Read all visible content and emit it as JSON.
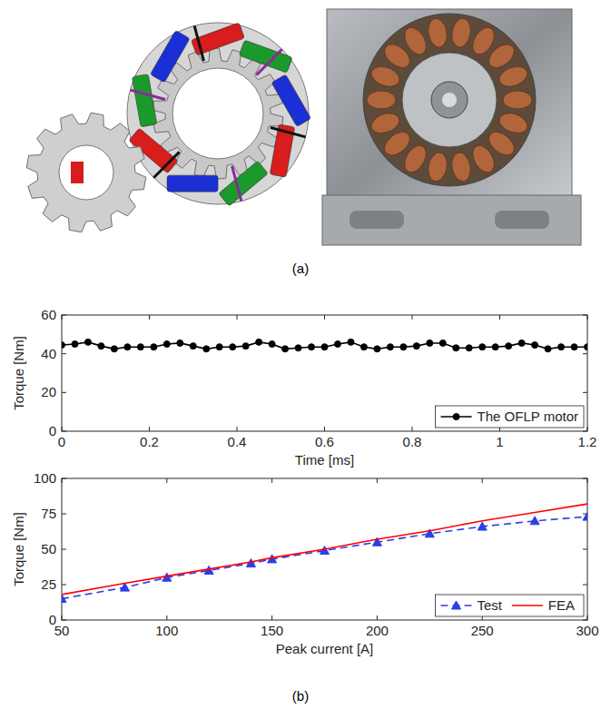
{
  "panel_labels": {
    "a": "(a)",
    "b": "(b)"
  },
  "chart_data": [
    {
      "type": "line",
      "x_label": "Time [ms]",
      "y_label": "Torque [Nm]",
      "x": [
        0,
        0.03,
        0.06,
        0.09,
        0.12,
        0.15,
        0.18,
        0.21,
        0.24,
        0.27,
        0.3,
        0.33,
        0.36,
        0.39,
        0.42,
        0.45,
        0.48,
        0.51,
        0.54,
        0.57,
        0.6,
        0.63,
        0.66,
        0.69,
        0.72,
        0.75,
        0.78,
        0.81,
        0.84,
        0.87,
        0.9,
        0.93,
        0.96,
        0.99,
        1.02,
        1.05,
        1.08,
        1.11,
        1.14,
        1.17,
        1.2
      ],
      "series": [
        {
          "name": "The OFLP motor",
          "color": "#000000",
          "marker": "circle",
          "line_style": "solid",
          "values": [
            44.5,
            45,
            46,
            44,
            42.5,
            43.5,
            43.5,
            43.5,
            45,
            45.5,
            44,
            42.5,
            43.5,
            43.5,
            44,
            46,
            45,
            42.5,
            43,
            43.5,
            43.5,
            45,
            46,
            43.5,
            42.5,
            43.5,
            43.5,
            44,
            45.5,
            45.5,
            43,
            43,
            43.5,
            43.5,
            44,
            45.5,
            44.5,
            42.5,
            43.5,
            43.5,
            43.5
          ]
        }
      ],
      "xlim": [
        0,
        1.2
      ],
      "xticks": [
        0,
        0.2,
        0.4,
        0.6,
        0.8,
        1,
        1.2
      ],
      "ylim": [
        0,
        60
      ],
      "yticks": [
        0,
        20,
        40,
        60
      ],
      "grid": false,
      "legend": "lower right"
    },
    {
      "type": "line",
      "x_label": "Peak current [A]",
      "y_label": "Torque [Nm]",
      "x": [
        50,
        80,
        100,
        120,
        140,
        150,
        175,
        200,
        225,
        250,
        275,
        300
      ],
      "series": [
        {
          "name": "Test",
          "color": "#2b3fe6",
          "marker": "triangle",
          "line_style": "dashed",
          "values": [
            15,
            23,
            30,
            35,
            40,
            43,
            49,
            55,
            61,
            66,
            70,
            73
          ]
        },
        {
          "name": "FEA",
          "color": "#ff0000",
          "marker": "none",
          "line_style": "solid",
          "values": [
            18,
            26,
            31,
            36,
            41,
            44,
            50,
            57,
            63,
            70,
            76,
            82
          ]
        }
      ],
      "xlim": [
        50,
        300
      ],
      "xticks": [
        50,
        100,
        150,
        200,
        250,
        300
      ],
      "ylim": [
        0,
        100
      ],
      "yticks": [
        0,
        25,
        50,
        75,
        100
      ],
      "grid": false,
      "legend": "lower right"
    }
  ]
}
